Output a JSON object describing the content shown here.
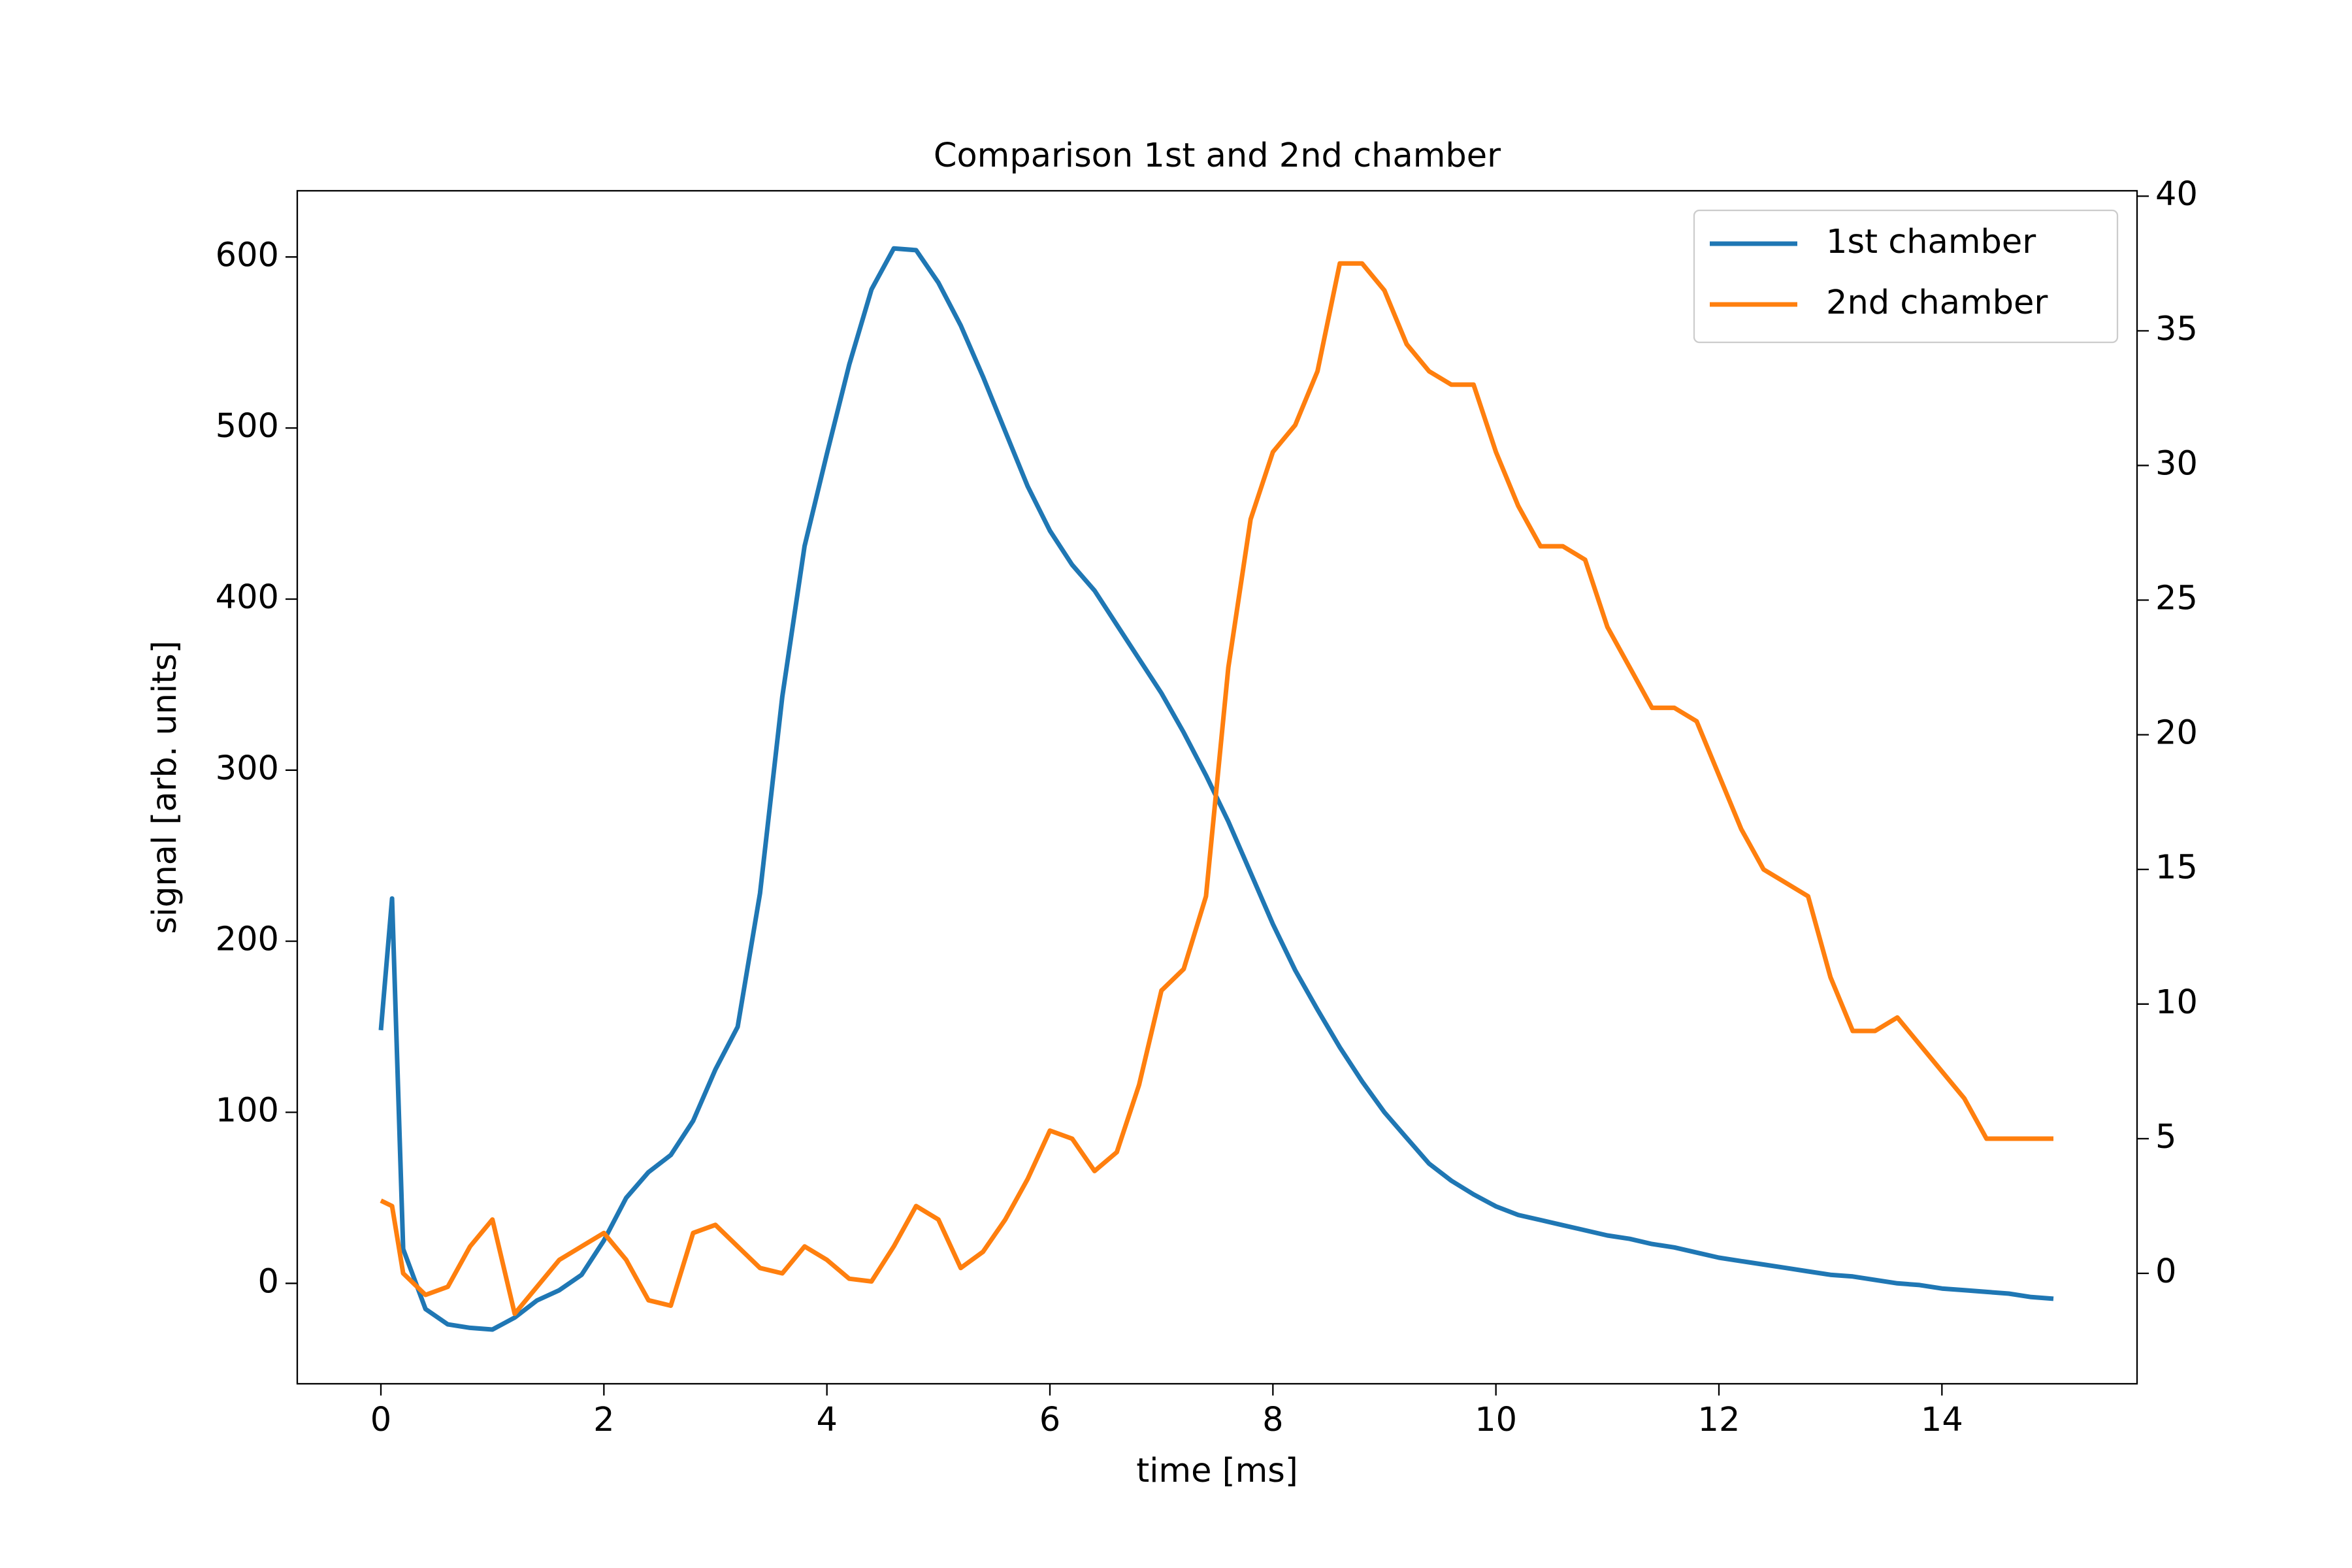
{
  "chart_data": {
    "type": "line",
    "title": "Comparison 1st and 2nd chamber",
    "xlabel": "time [ms]",
    "ylabel": "signal [arb. units]",
    "x": [
      0,
      0.1,
      0.2,
      0.4,
      0.6,
      0.8,
      1.0,
      1.2,
      1.4,
      1.6,
      1.8,
      2.0,
      2.2,
      2.4,
      2.6,
      2.8,
      3.0,
      3.2,
      3.4,
      3.6,
      3.8,
      4.0,
      4.2,
      4.4,
      4.6,
      4.8,
      5.0,
      5.2,
      5.4,
      5.6,
      5.8,
      6.0,
      6.2,
      6.4,
      6.6,
      6.8,
      7.0,
      7.2,
      7.4,
      7.6,
      7.8,
      8.0,
      8.2,
      8.4,
      8.6,
      8.8,
      9.0,
      9.2,
      9.4,
      9.6,
      9.8,
      10.0,
      10.2,
      10.4,
      10.6,
      10.8,
      11.0,
      11.2,
      11.4,
      11.6,
      11.8,
      12.0,
      12.2,
      12.4,
      12.6,
      12.8,
      13.0,
      13.2,
      13.4,
      13.6,
      13.8,
      14.0,
      14.2,
      14.4,
      14.6,
      14.8,
      15.0
    ],
    "series": [
      {
        "name": "1st chamber",
        "color": "#1f77b4",
        "axis": "y",
        "values": [
          148,
          225,
          20,
          -15,
          -24,
          -26,
          -27,
          -20,
          -10,
          -4,
          5,
          25,
          50,
          65,
          75,
          95,
          125,
          150,
          228,
          343,
          431,
          485,
          537,
          581,
          605,
          604,
          585,
          560,
          530,
          498,
          466,
          440,
          420,
          405,
          385,
          365,
          345,
          322,
          297,
          270,
          240,
          210,
          183,
          160,
          138,
          118,
          100,
          85,
          70,
          60,
          52,
          45,
          40,
          37,
          34,
          31,
          28,
          26,
          23,
          21,
          18,
          15,
          13,
          11,
          9,
          7,
          5,
          4,
          2,
          0,
          -1,
          -3,
          -4,
          -5,
          -6,
          -8,
          -9
        ]
      },
      {
        "name": "2nd chamber",
        "color": "#ff7f0e",
        "axis": "y2",
        "values": [
          2.7,
          2.5,
          0.0,
          -0.8,
          -0.5,
          1.0,
          2.0,
          -1.5,
          -0.5,
          0.5,
          1.0,
          1.5,
          0.5,
          -1.0,
          -1.2,
          1.5,
          1.8,
          1.0,
          0.2,
          0.0,
          1.0,
          0.5,
          -0.2,
          -0.3,
          1.0,
          2.5,
          2.0,
          0.2,
          0.8,
          2.0,
          3.5,
          5.3,
          5.0,
          3.8,
          4.5,
          7.0,
          10.5,
          11.3,
          14.0,
          22.5,
          28.0,
          30.5,
          31.5,
          33.5,
          37.5,
          37.5,
          36.5,
          34.5,
          33.5,
          33.0,
          33.0,
          30.5,
          28.5,
          27.0,
          27.0,
          26.5,
          24.0,
          22.5,
          21.0,
          21.0,
          20.5,
          18.5,
          16.5,
          15.0,
          14.5,
          14.0,
          11.0,
          9.0,
          9.0,
          9.5,
          8.5,
          7.5,
          6.5,
          5.0,
          5.0,
          5.0,
          5.0
        ]
      }
    ],
    "xlim": [
      -0.75,
      15.75
    ],
    "xticks": [
      0,
      2,
      4,
      6,
      8,
      10,
      12,
      14
    ],
    "ylim": [
      -58.7,
      638.7
    ],
    "yticks": [
      0,
      100,
      200,
      300,
      400,
      500,
      600
    ],
    "y2lim": [
      -4.1,
      40.2
    ],
    "y2ticks": [
      0,
      5,
      10,
      15,
      20,
      25,
      30,
      35,
      40
    ],
    "grid": false,
    "legend": "upper right"
  }
}
